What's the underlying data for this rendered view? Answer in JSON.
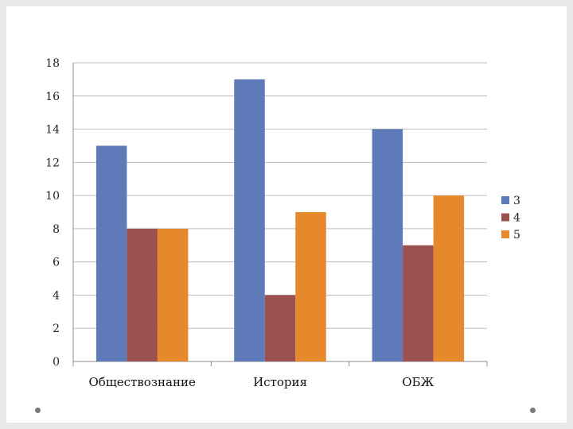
{
  "chart_data": {
    "type": "bar",
    "categories": [
      "Обществознание",
      "История",
      "ОБЖ"
    ],
    "series": [
      {
        "name": "3",
        "color": "#5f7ab9",
        "values": [
          13,
          17,
          14
        ]
      },
      {
        "name": "4",
        "color": "#9c5151",
        "values": [
          8,
          4,
          7
        ]
      },
      {
        "name": "5",
        "color": "#e5892c",
        "values": [
          8,
          9,
          10
        ]
      }
    ],
    "yticks": [
      "0",
      "2",
      "4",
      "6",
      "8",
      "10",
      "12",
      "14",
      "16",
      "18"
    ],
    "ylim": [
      0,
      18
    ],
    "grid": true,
    "legend_position": "right",
    "title": "",
    "xlabel": "",
    "ylabel": ""
  }
}
